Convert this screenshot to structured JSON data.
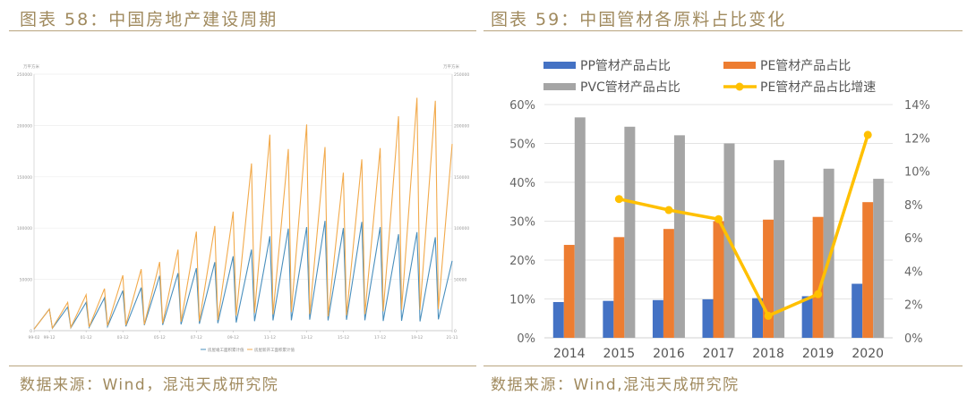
{
  "left": {
    "title": "图表 58：中国房地产建设周期",
    "source": "数据来源：Wind，混沌天成研究院"
  },
  "right": {
    "title": "图表 59：中国管材各原料占比变化",
    "source": "数据来源：Wind,混沌天成研究院"
  },
  "chart_data": [
    {
      "type": "line",
      "unit_left": "万平方米",
      "unit_right": "万平方米",
      "ylim": [
        0,
        250000
      ],
      "yticks": [
        0,
        50000,
        100000,
        150000,
        200000,
        250000
      ],
      "xtick_labels": [
        "99-02",
        "99-12",
        "01-12",
        "03-12",
        "05-12",
        "07-12",
        "09-12",
        "11-12",
        "13-12",
        "15-12",
        "17-12",
        "19-12",
        "21-11"
      ],
      "grid": true,
      "legend_position": "bottom",
      "colors": {
        "completed": "#4a8fbd",
        "new_starts": "#f2aa4c"
      },
      "x": [
        "1999-02",
        "1999-12",
        "2000-02",
        "2000-12",
        "2001-02",
        "2001-12",
        "2002-02",
        "2002-12",
        "2003-02",
        "2003-12",
        "2004-02",
        "2004-12",
        "2005-02",
        "2005-12",
        "2006-02",
        "2006-12",
        "2007-02",
        "2007-12",
        "2008-02",
        "2008-12",
        "2009-02",
        "2009-12",
        "2010-02",
        "2010-12",
        "2011-02",
        "2011-12",
        "2012-02",
        "2012-12",
        "2013-02",
        "2013-12",
        "2014-02",
        "2014-12",
        "2015-02",
        "2015-12",
        "2016-02",
        "2016-12",
        "2017-02",
        "2017-12",
        "2018-02",
        "2018-12",
        "2019-02",
        "2019-12",
        "2020-02",
        "2020-12",
        "2021-02",
        "2021-11"
      ],
      "series": [
        {
          "name": "房屋竣工面积累计值",
          "values": [
            1500,
            21000,
            2300,
            23000,
            2800,
            27500,
            3200,
            32000,
            3900,
            39000,
            4200,
            42000,
            5400,
            53600,
            5600,
            56000,
            6100,
            61000,
            6700,
            66700,
            7300,
            72500,
            7900,
            79000,
            9200,
            92000,
            10000,
            99500,
            10100,
            101000,
            10700,
            107000,
            10000,
            100000,
            10600,
            106000,
            10100,
            101000,
            9400,
            94000,
            9600,
            96000,
            9100,
            91000,
            11000,
            68000
          ]
        },
        {
          "name": "房屋新开工面积累计值",
          "values": [
            1500,
            20900,
            2500,
            27500,
            3200,
            35000,
            3700,
            41000,
            4900,
            54000,
            5400,
            60000,
            6000,
            67000,
            7100,
            79000,
            8700,
            96500,
            9200,
            102000,
            10400,
            116000,
            14700,
            163000,
            17200,
            191000,
            15900,
            177000,
            18100,
            201000,
            16100,
            179000,
            13900,
            154000,
            15000,
            167000,
            16000,
            178000,
            18800,
            209000,
            20400,
            227000,
            20200,
            224000,
            21000,
            182000
          ]
        }
      ]
    },
    {
      "type": "bar",
      "categories": [
        "2014",
        "2015",
        "2016",
        "2017",
        "2018",
        "2019",
        "2020"
      ],
      "ylim": [
        0,
        60
      ],
      "yticks": [
        "0%",
        "10%",
        "20%",
        "30%",
        "40%",
        "50%",
        "60%"
      ],
      "y2lim": [
        0,
        14
      ],
      "y2ticks": [
        "0%",
        "2%",
        "4%",
        "6%",
        "8%",
        "10%",
        "12%",
        "14%"
      ],
      "grid": true,
      "legend_position": "top",
      "series": [
        {
          "name": "PP管材产品占比",
          "kind": "bar",
          "axis": "left",
          "color": "#4472c4",
          "values": [
            9.2,
            9.5,
            9.7,
            9.9,
            10.2,
            10.7,
            13.9
          ]
        },
        {
          "name": "PE管材产品占比",
          "kind": "bar",
          "axis": "left",
          "color": "#ed7d31",
          "values": [
            23.9,
            25.9,
            28.0,
            30.0,
            30.4,
            31.1,
            34.9
          ]
        },
        {
          "name": "PVC管材产品占比",
          "kind": "bar",
          "axis": "left",
          "color": "#a5a5a5",
          "values": [
            56.7,
            54.3,
            52.1,
            50.0,
            45.7,
            43.5,
            40.9
          ]
        },
        {
          "name": "PE管材产品占比增速",
          "kind": "line",
          "axis": "right",
          "color": "#ffc000",
          "values": [
            null,
            8.33,
            7.67,
            7.12,
            1.32,
            2.62,
            12.18
          ]
        }
      ]
    }
  ]
}
